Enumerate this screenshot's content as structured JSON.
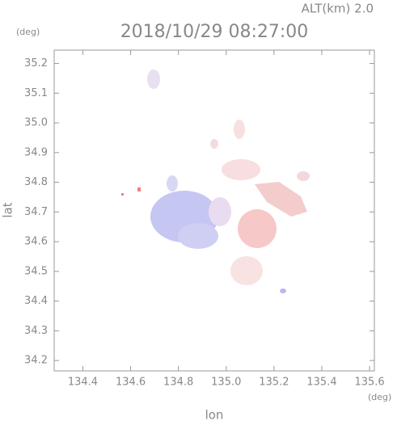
{
  "chart_data": {
    "type": "map",
    "title": "2018/10/29 08:27:00",
    "subtitle": "ALT(km) 2.0",
    "x_label": "lon",
    "x_unit": "(deg)",
    "y_label": "lat",
    "y_unit": "(deg)",
    "xlim": [
      134.28,
      135.62
    ],
    "xticks": [
      134.4,
      134.6,
      134.8,
      {
        "value": 135,
        "label": "135.0"
      },
      135.2,
      135.4,
      135.6
    ],
    "ylim": [
      34.165,
      35.245
    ],
    "yticks": [
      34.2,
      34.3,
      34.4,
      34.5,
      34.6,
      34.7,
      34.8,
      34.9,
      {
        "value": 35,
        "label": "35.0"
      },
      35.1,
      35.2
    ]
  }
}
